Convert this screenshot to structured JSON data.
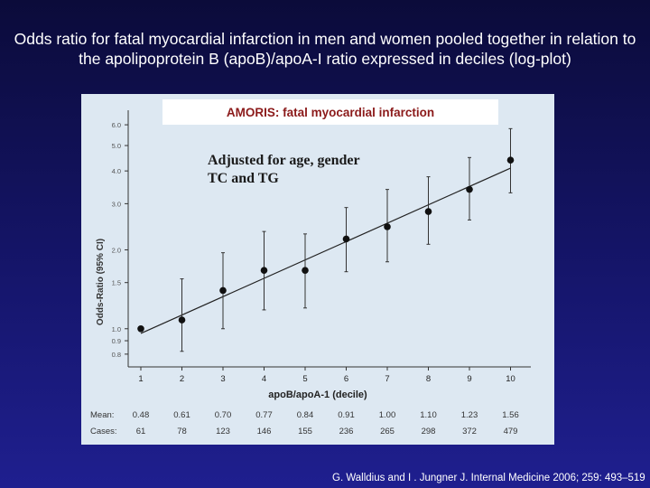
{
  "slide": {
    "title": "Odds ratio for fatal myocardial infarction in men and women pooled together in relation to the apolipoprotein B (apoB)/apoA-I ratio expressed in deciles (log-plot)",
    "footer": "G. Walldius and I . Jungner J. Internal Medicine 2006; 259: 493–519"
  },
  "chart_data": {
    "type": "scatter",
    "title": "AMORIS: fatal myocardial infarction",
    "annotation": [
      "Adjusted for age, gender",
      "TC and TG"
    ],
    "xlabel": "apoB/apoA-1 (decile)",
    "ylabel": "Odds-Ratio (95% CI)",
    "y_scale": "log",
    "ylim": [
      0.75,
      6.5
    ],
    "xlim": [
      0.5,
      10.5
    ],
    "x_ticks": [
      "1",
      "2",
      "3",
      "4",
      "5",
      "6",
      "7",
      "8",
      "9",
      "10"
    ],
    "y_ticks": [
      {
        "label": "0.8",
        "value": 0.8
      },
      {
        "label": "0.9",
        "value": 0.9
      },
      {
        "label": "1.0",
        "value": 1.0
      },
      {
        "label": "1.5",
        "value": 1.5
      },
      {
        "label": "2.0",
        "value": 2.0
      },
      {
        "label": "3.0",
        "value": 3.0
      },
      {
        "label": "4.0",
        "value": 4.0
      },
      {
        "label": "5.0",
        "value": 5.0
      },
      {
        "label": "6.0",
        "value": 6.0
      }
    ],
    "points": [
      {
        "x": 1,
        "or": 1.0,
        "lo": 1.0,
        "hi": 1.0
      },
      {
        "x": 2,
        "or": 1.08,
        "lo": 0.82,
        "hi": 1.55
      },
      {
        "x": 3,
        "or": 1.4,
        "lo": 1.0,
        "hi": 1.95
      },
      {
        "x": 4,
        "or": 1.67,
        "lo": 1.18,
        "hi": 2.35
      },
      {
        "x": 5,
        "or": 1.67,
        "lo": 1.2,
        "hi": 2.3
      },
      {
        "x": 6,
        "or": 2.2,
        "lo": 1.65,
        "hi": 2.9
      },
      {
        "x": 7,
        "or": 2.45,
        "lo": 1.8,
        "hi": 3.4
      },
      {
        "x": 8,
        "or": 2.8,
        "lo": 2.1,
        "hi": 3.8
      },
      {
        "x": 9,
        "or": 3.4,
        "lo": 2.6,
        "hi": 4.5
      },
      {
        "x": 10,
        "or": 4.4,
        "lo": 3.3,
        "hi": 5.8
      }
    ],
    "trend_line": {
      "x": [
        1,
        10
      ],
      "y": [
        0.96,
        4.1
      ]
    },
    "summary_rows": [
      {
        "label": "Mean:",
        "values": [
          "0.48",
          "0.61",
          "0.70",
          "0.77",
          "0.84",
          "0.91",
          "1.00",
          "1.10",
          "1.23",
          "1.56"
        ]
      },
      {
        "label": "Cases:",
        "values": [
          "61",
          "78",
          "123",
          "146",
          "155",
          "236",
          "265",
          "298",
          "372",
          "479"
        ]
      }
    ],
    "grid": false
  }
}
